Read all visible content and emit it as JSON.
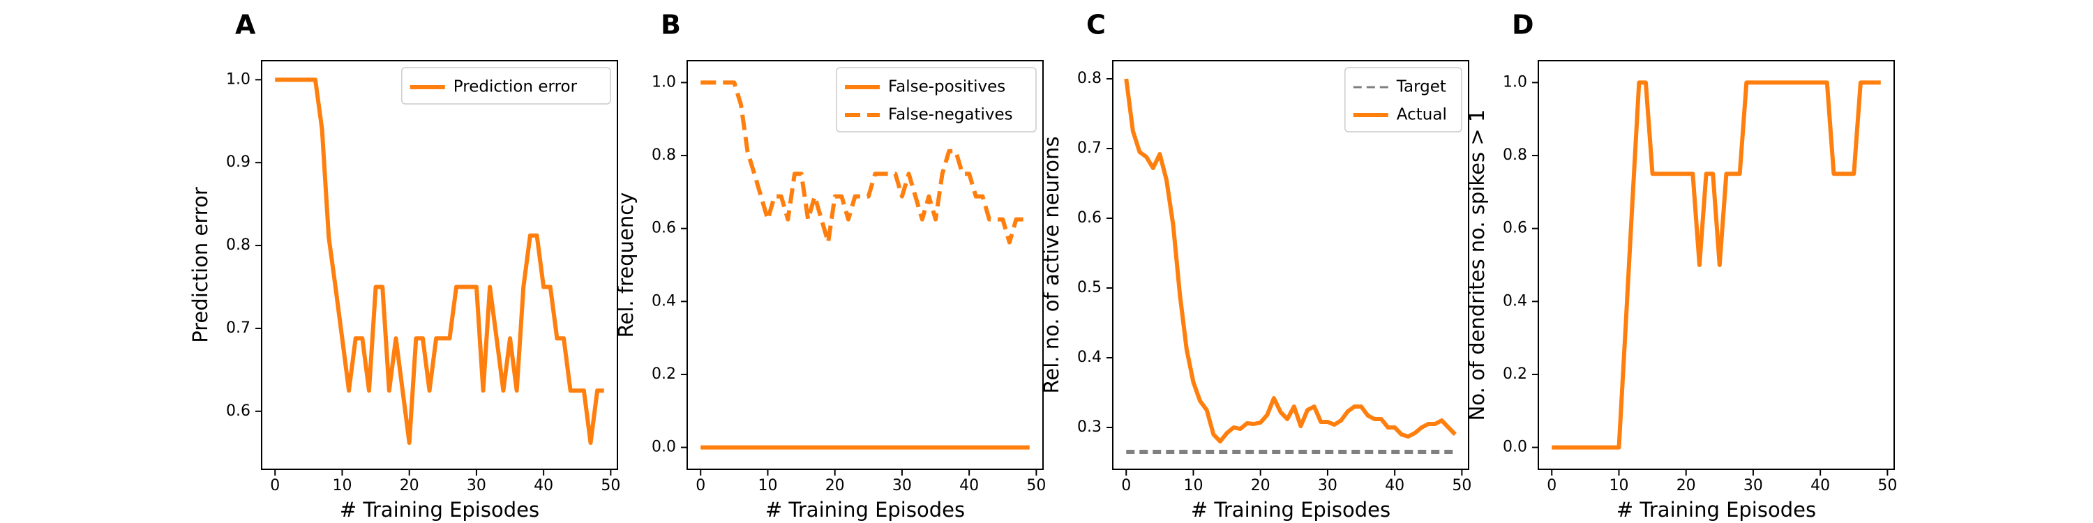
{
  "colors": {
    "orange": "#ff7f0e",
    "gray": "#808080"
  },
  "chart_data": [
    {
      "panel": "A",
      "type": "line",
      "xlabel": "# Training Episodes",
      "ylabel": "Prediction error",
      "xlim": [
        -2,
        51
      ],
      "ylim": [
        0.53,
        1.023
      ],
      "xticks": [
        0,
        10,
        20,
        30,
        40,
        50
      ],
      "yticks": [
        0.6,
        0.7,
        0.8,
        0.9,
        1.0
      ],
      "yprec": 1,
      "legend": "top-right",
      "series": [
        {
          "name": "Prediction error",
          "color": "#ff7f0e",
          "dash": "solid",
          "x": [
            0,
            1,
            2,
            3,
            4,
            5,
            6,
            7,
            8,
            9,
            10,
            11,
            12,
            13,
            14,
            15,
            16,
            17,
            18,
            19,
            20,
            21,
            22,
            23,
            24,
            25,
            26,
            27,
            28,
            29,
            30,
            31,
            32,
            33,
            34,
            35,
            36,
            37,
            38,
            39,
            40,
            41,
            42,
            43,
            44,
            45,
            46,
            47,
            48,
            49
          ],
          "y": [
            1.0,
            1.0,
            1.0,
            1.0,
            1.0,
            1.0,
            1.0,
            0.94,
            0.81,
            0.75,
            0.688,
            0.625,
            0.688,
            0.688,
            0.625,
            0.75,
            0.75,
            0.625,
            0.688,
            0.625,
            0.562,
            0.688,
            0.688,
            0.625,
            0.688,
            0.688,
            0.688,
            0.75,
            0.75,
            0.75,
            0.75,
            0.625,
            0.75,
            0.688,
            0.625,
            0.688,
            0.625,
            0.75,
            0.812,
            0.812,
            0.75,
            0.75,
            0.688,
            0.688,
            0.625,
            0.625,
            0.625,
            0.562,
            0.625,
            0.625
          ]
        }
      ]
    },
    {
      "panel": "B",
      "type": "line",
      "xlabel": "# Training Episodes",
      "ylabel": "Rel. frequency",
      "xlim": [
        -2,
        51
      ],
      "ylim": [
        -0.06,
        1.06
      ],
      "xticks": [
        0,
        10,
        20,
        30,
        40,
        50
      ],
      "yticks": [
        0.0,
        0.2,
        0.4,
        0.6,
        0.8,
        1.0
      ],
      "yprec": 1,
      "legend": "top-right",
      "series": [
        {
          "name": "False-positives",
          "color": "#ff7f0e",
          "dash": "solid",
          "x": [
            0,
            49
          ],
          "y": [
            0.0,
            0.0
          ]
        },
        {
          "name": "False-negatives",
          "color": "#ff7f0e",
          "dash": "dashed",
          "x": [
            0,
            1,
            2,
            3,
            4,
            5,
            6,
            7,
            8,
            9,
            10,
            11,
            12,
            13,
            14,
            15,
            16,
            17,
            18,
            19,
            20,
            21,
            22,
            23,
            24,
            25,
            26,
            27,
            28,
            29,
            30,
            31,
            32,
            33,
            34,
            35,
            36,
            37,
            38,
            39,
            40,
            41,
            42,
            43,
            44,
            45,
            46,
            47,
            48,
            49
          ],
          "y": [
            1.0,
            1.0,
            1.0,
            1.0,
            1.0,
            1.0,
            0.94,
            0.81,
            0.75,
            0.688,
            0.625,
            0.688,
            0.688,
            0.625,
            0.75,
            0.75,
            0.625,
            0.688,
            0.625,
            0.562,
            0.688,
            0.688,
            0.625,
            0.688,
            0.688,
            0.688,
            0.75,
            0.75,
            0.75,
            0.75,
            0.688,
            0.75,
            0.688,
            0.625,
            0.688,
            0.625,
            0.75,
            0.812,
            0.812,
            0.75,
            0.75,
            0.688,
            0.688,
            0.625,
            0.625,
            0.625,
            0.562,
            0.625,
            0.625,
            0.625
          ]
        }
      ]
    },
    {
      "panel": "C",
      "type": "line",
      "xlabel": "# Training Episodes",
      "ylabel": "Rel. no. of active neurons",
      "xlim": [
        -2,
        51
      ],
      "ylim": [
        0.24,
        0.826
      ],
      "xticks": [
        0,
        10,
        20,
        30,
        40,
        50
      ],
      "yticks": [
        0.3,
        0.4,
        0.5,
        0.6,
        0.7,
        0.8
      ],
      "yprec": 1,
      "legend": "top-right",
      "series": [
        {
          "name": "Target",
          "color": "#808080",
          "dash": "target",
          "x": [
            0,
            49
          ],
          "y": [
            0.265,
            0.265
          ]
        },
        {
          "name": "Actual",
          "color": "#ff7f0e",
          "dash": "solid",
          "x": [
            0,
            1,
            2,
            3,
            4,
            5,
            6,
            7,
            8,
            9,
            10,
            11,
            12,
            13,
            14,
            15,
            16,
            17,
            18,
            19,
            20,
            21,
            22,
            23,
            24,
            25,
            26,
            27,
            28,
            29,
            30,
            31,
            32,
            33,
            34,
            35,
            36,
            37,
            38,
            39,
            40,
            41,
            42,
            43,
            44,
            45,
            46,
            47,
            48,
            49
          ],
          "y": [
            0.8,
            0.725,
            0.695,
            0.688,
            0.672,
            0.692,
            0.655,
            0.59,
            0.49,
            0.412,
            0.365,
            0.338,
            0.325,
            0.29,
            0.28,
            0.292,
            0.3,
            0.298,
            0.306,
            0.305,
            0.307,
            0.318,
            0.342,
            0.322,
            0.312,
            0.33,
            0.302,
            0.325,
            0.33,
            0.308,
            0.308,
            0.304,
            0.31,
            0.323,
            0.33,
            0.33,
            0.317,
            0.312,
            0.312,
            0.3,
            0.3,
            0.29,
            0.287,
            0.292,
            0.3,
            0.305,
            0.305,
            0.31,
            0.3,
            0.29
          ]
        }
      ]
    },
    {
      "panel": "D",
      "type": "line",
      "xlabel": "# Training Episodes",
      "ylabel": "No. of dendrites no. spikes > 1",
      "xlim": [
        -2,
        51
      ],
      "ylim": [
        -0.06,
        1.06
      ],
      "xticks": [
        0,
        10,
        20,
        30,
        40,
        50
      ],
      "yticks": [
        0.0,
        0.2,
        0.4,
        0.6,
        0.8,
        1.0
      ],
      "yprec": 1,
      "legend": "none",
      "series": [
        {
          "name": "",
          "color": "#ff7f0e",
          "dash": "solid",
          "x": [
            0,
            1,
            2,
            3,
            4,
            5,
            6,
            7,
            8,
            9,
            10,
            11,
            12,
            13,
            14,
            15,
            16,
            17,
            18,
            19,
            20,
            21,
            22,
            23,
            24,
            25,
            26,
            27,
            28,
            29,
            30,
            31,
            32,
            33,
            34,
            35,
            36,
            37,
            38,
            39,
            40,
            41,
            42,
            43,
            44,
            45,
            46,
            47,
            48,
            49
          ],
          "y": [
            0,
            0,
            0,
            0,
            0,
            0,
            0,
            0,
            0,
            0,
            0,
            0.33,
            0.67,
            1.0,
            1.0,
            0.75,
            0.75,
            0.75,
            0.75,
            0.75,
            0.75,
            0.75,
            0.5,
            0.75,
            0.75,
            0.5,
            0.75,
            0.75,
            0.75,
            1.0,
            1.0,
            1.0,
            1.0,
            1.0,
            1.0,
            1.0,
            1.0,
            1.0,
            1.0,
            1.0,
            1.0,
            1.0,
            0.75,
            0.75,
            0.75,
            0.75,
            1.0,
            1.0,
            1.0,
            1.0
          ]
        }
      ]
    }
  ]
}
